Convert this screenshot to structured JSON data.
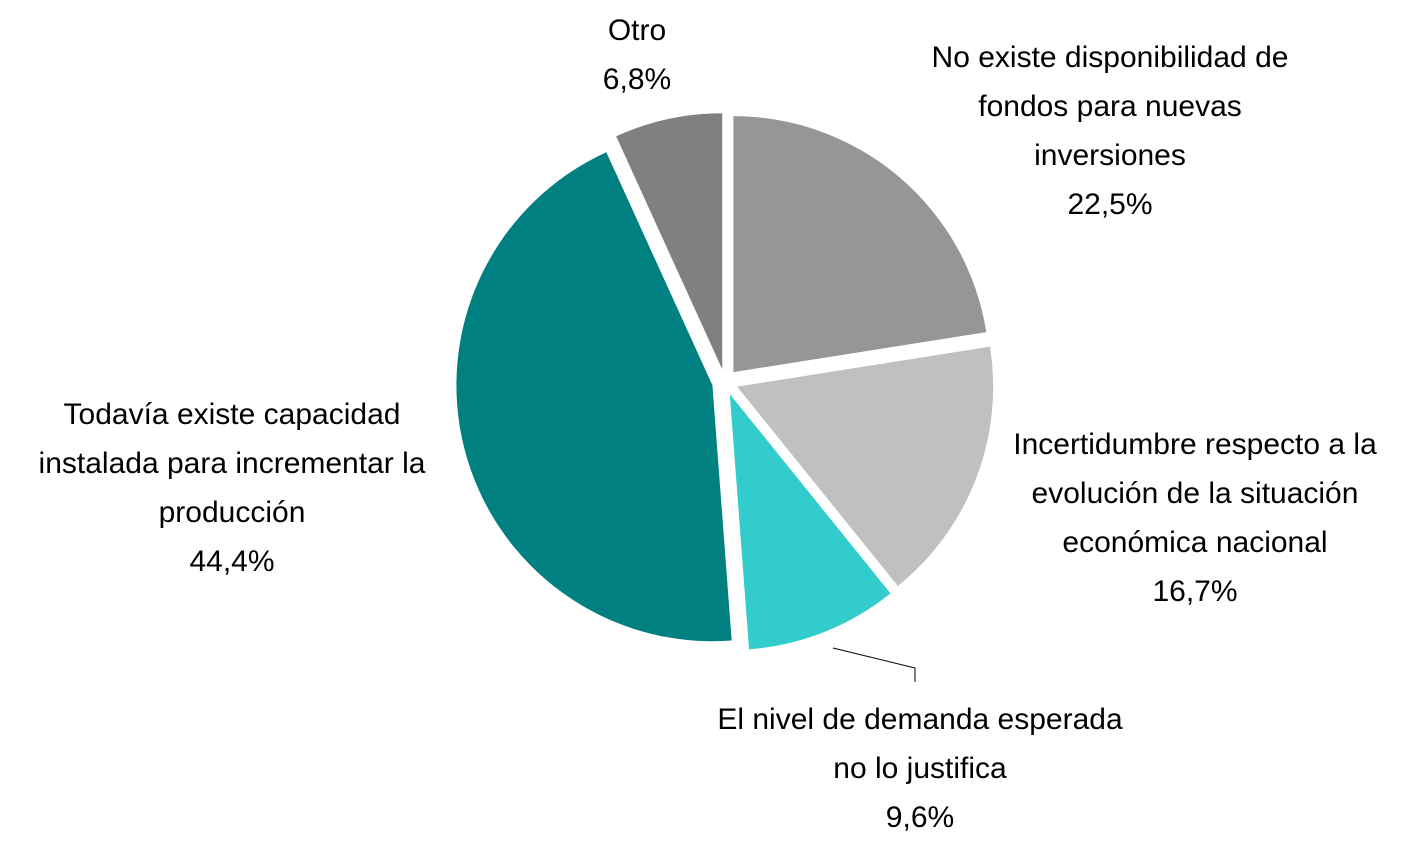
{
  "chart_data": {
    "type": "pie",
    "categories": [
      "No existe disponibilidad de fondos para nuevas inversiones",
      "Incertidumbre respecto a la evolución de la situación económica nacional",
      "El nivel de demanda esperada no lo justifica",
      "Todavía existe capacidad instalada para incrementar la producción",
      "Otro"
    ],
    "values": [
      22.5,
      16.7,
      9.6,
      44.4,
      6.8
    ],
    "value_labels": [
      "22,5%",
      "16,7%",
      "9,6%",
      "44,4%",
      "6,8%"
    ],
    "colors": [
      "#969696",
      "#c0c0c0",
      "#33cccc",
      "#008080",
      "#808080"
    ]
  }
}
